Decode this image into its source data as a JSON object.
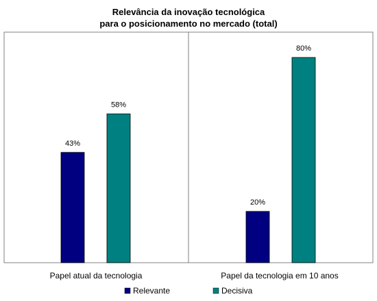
{
  "chart_data": {
    "type": "bar",
    "title_lines": [
      "Relevância da inovação tecnológica",
      "para o posicionamento no mercado (total)"
    ],
    "categories": [
      "Papel atual da tecnologia",
      "Papel da tecnologia em 10 anos"
    ],
    "series": [
      {
        "name": "Relevante",
        "values": [
          43,
          20
        ],
        "labels": [
          "43%",
          "20%"
        ],
        "color": "#000080"
      },
      {
        "name": "Decisiva",
        "values": [
          58,
          80
        ],
        "labels": [
          "58%",
          "80%"
        ],
        "color": "#008080"
      }
    ],
    "ylim": [
      0,
      100
    ],
    "grid": false,
    "legend_position": "bottom",
    "frame_color": "#808080"
  }
}
